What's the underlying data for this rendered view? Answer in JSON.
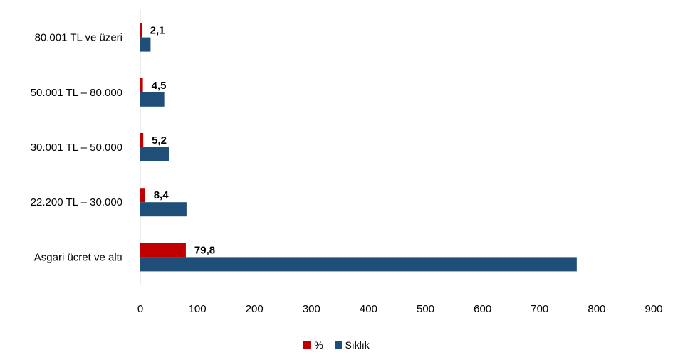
{
  "chart_data": {
    "type": "bar",
    "orientation": "horizontal",
    "categories": [
      "80.001 TL ve üzeri",
      "50.001 TL – 80.000",
      "30.001 TL – 50.000",
      "22.200 TL – 30.000",
      "Asgari ücret ve altı"
    ],
    "series": [
      {
        "name": "%",
        "color": "#c00000",
        "values": [
          2.1,
          4.5,
          5.2,
          8.4,
          79.8
        ],
        "labels": [
          "2,1",
          "4,5",
          "5,2",
          "8,4",
          "79,8"
        ]
      },
      {
        "name": "Sıklık",
        "color": "#1f4e79",
        "values": [
          18,
          42,
          50,
          81,
          765
        ]
      }
    ],
    "xlim": [
      0,
      900
    ],
    "xticks": [
      0,
      100,
      200,
      300,
      400,
      500,
      600,
      700,
      800,
      900
    ],
    "grid": false,
    "legend_position": "bottom"
  }
}
